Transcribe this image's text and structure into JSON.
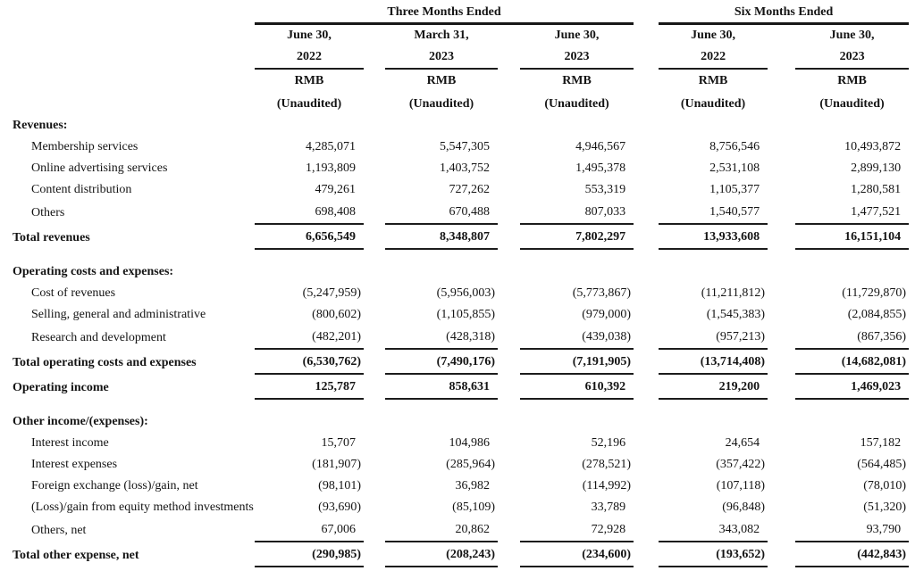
{
  "table": {
    "col_groups": [
      {
        "label": "Three Months Ended",
        "span": 3
      },
      {
        "label": "Six Months Ended",
        "span": 2
      }
    ],
    "columns": [
      {
        "date_line1": "June 30,",
        "date_line2": "2022",
        "currency": "RMB",
        "note": "(Unaudited)"
      },
      {
        "date_line1": "March 31,",
        "date_line2": "2023",
        "currency": "RMB",
        "note": "(Unaudited)"
      },
      {
        "date_line1": "June 30,",
        "date_line2": "2023",
        "currency": "RMB",
        "note": "(Unaudited)"
      },
      {
        "date_line1": "June 30,",
        "date_line2": "2022",
        "currency": "RMB",
        "note": "(Unaudited)"
      },
      {
        "date_line1": "June 30,",
        "date_line2": "2023",
        "currency": "RMB",
        "note": "(Unaudited)"
      }
    ],
    "rows": [
      {
        "type": "section",
        "label": "Revenues:"
      },
      {
        "type": "item",
        "label": "Membership services",
        "values": [
          "4,285,071",
          "5,547,305",
          "4,946,567",
          "8,756,546",
          "10,493,872"
        ]
      },
      {
        "type": "item",
        "label": "Online advertising services",
        "values": [
          "1,193,809",
          "1,403,752",
          "1,495,378",
          "2,531,108",
          "2,899,130"
        ]
      },
      {
        "type": "item",
        "label": "Content distribution",
        "values": [
          "479,261",
          "727,262",
          "553,319",
          "1,105,377",
          "1,280,581"
        ]
      },
      {
        "type": "item",
        "underline": true,
        "label": "Others",
        "values": [
          "698,408",
          "670,488",
          "807,033",
          "1,540,577",
          "1,477,521"
        ]
      },
      {
        "type": "total",
        "underline": true,
        "label": "Total revenues",
        "values": [
          "6,656,549",
          "8,348,807",
          "7,802,297",
          "13,933,608",
          "16,151,104"
        ]
      },
      {
        "type": "spacer"
      },
      {
        "type": "section",
        "label": "Operating costs and expenses:"
      },
      {
        "type": "item",
        "label": "Cost of revenues",
        "values": [
          "(5,247,959)",
          "(5,956,003)",
          "(5,773,867)",
          "(11,211,812)",
          "(11,729,870)"
        ]
      },
      {
        "type": "item",
        "label": "Selling, general and administrative",
        "values": [
          "(800,602)",
          "(1,105,855)",
          "(979,000)",
          "(1,545,383)",
          "(2,084,855)"
        ]
      },
      {
        "type": "item",
        "underline": true,
        "label": "Research and development",
        "values": [
          "(482,201)",
          "(428,318)",
          "(439,038)",
          "(957,213)",
          "(867,356)"
        ]
      },
      {
        "type": "total",
        "underline": true,
        "label": "Total operating costs and expenses",
        "values": [
          "(6,530,762)",
          "(7,490,176)",
          "(7,191,905)",
          "(13,714,408)",
          "(14,682,081)"
        ]
      },
      {
        "type": "total",
        "underline": true,
        "label": "Operating income",
        "values": [
          "125,787",
          "858,631",
          "610,392",
          "219,200",
          "1,469,023"
        ]
      },
      {
        "type": "spacer"
      },
      {
        "type": "section",
        "label": "Other income/(expenses):"
      },
      {
        "type": "item",
        "label": "Interest income",
        "values": [
          "15,707",
          "104,986",
          "52,196",
          "24,654",
          "157,182"
        ]
      },
      {
        "type": "item",
        "label": "Interest expenses",
        "values": [
          "(181,907)",
          "(285,964)",
          "(278,521)",
          "(357,422)",
          "(564,485)"
        ]
      },
      {
        "type": "item",
        "label": "Foreign exchange (loss)/gain, net",
        "values": [
          "(98,101)",
          "36,982",
          "(114,992)",
          "(107,118)",
          "(78,010)"
        ]
      },
      {
        "type": "item",
        "label": "(Loss)/gain from equity method investments",
        "values": [
          "(93,690)",
          "(85,109)",
          "33,789",
          "(96,848)",
          "(51,320)"
        ]
      },
      {
        "type": "item",
        "underline": true,
        "label": "Others, net",
        "values": [
          "67,006",
          "20,862",
          "72,928",
          "343,082",
          "93,790"
        ]
      },
      {
        "type": "total",
        "underline": true,
        "label": "Total other expense, net",
        "values": [
          "(290,985)",
          "(208,243)",
          "(234,600)",
          "(193,652)",
          "(442,843)"
        ]
      }
    ]
  }
}
